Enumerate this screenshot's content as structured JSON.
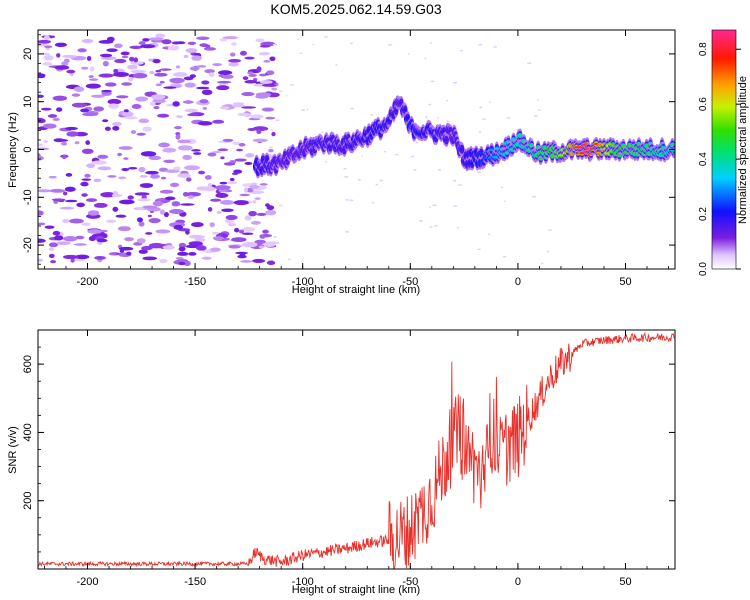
{
  "title": "KOM5.2025.062.14.59.G03",
  "spectrogram": {
    "type": "heatmap",
    "xlabel": "Height of straight line (km)",
    "ylabel": "Frequency (Hz)",
    "xlim": [
      -223,
      73
    ],
    "ylim": [
      -25,
      25
    ],
    "xticks": [
      "-200",
      "-150",
      "-100",
      "-50",
      "0",
      "50"
    ],
    "yticks": [
      "-20",
      "-10",
      "0",
      "10",
      "20"
    ],
    "colorbar": {
      "label": "Normalized spectral amplitude",
      "ticks": [
        "0.0",
        "0.2",
        "0.4",
        "0.6",
        "0.8"
      ],
      "range": [
        0,
        0.87
      ]
    }
  },
  "chart_data": [
    {
      "type": "heatmap",
      "title": "KOM5.2025.062.14.59.G03",
      "xlabel": "Height of straight line (km)",
      "ylabel": "Frequency (Hz)",
      "xlim": [
        -223,
        73
      ],
      "ylim": [
        -25,
        25
      ],
      "colorbar_range": [
        0,
        0.87
      ],
      "ridge": [
        {
          "x": -122,
          "y": -3.5,
          "amp": 0.2
        },
        {
          "x": -110,
          "y": -3.0,
          "amp": 0.15
        },
        {
          "x": -100,
          "y": 0.0,
          "amp": 0.15
        },
        {
          "x": -90,
          "y": 1.5,
          "amp": 0.18
        },
        {
          "x": -80,
          "y": 1.0,
          "amp": 0.17
        },
        {
          "x": -70,
          "y": 3.0,
          "amp": 0.2
        },
        {
          "x": -60,
          "y": 5.5,
          "amp": 0.2
        },
        {
          "x": -55,
          "y": 10.0,
          "amp": 0.15
        },
        {
          "x": -50,
          "y": 4.5,
          "amp": 0.22
        },
        {
          "x": -40,
          "y": 3.5,
          "amp": 0.2
        },
        {
          "x": -30,
          "y": 3.0,
          "amp": 0.15
        },
        {
          "x": -25,
          "y": -2.0,
          "amp": 0.18
        },
        {
          "x": -15,
          "y": -1.5,
          "amp": 0.25
        },
        {
          "x": -8,
          "y": -0.5,
          "amp": 0.35
        },
        {
          "x": 0,
          "y": 2.0,
          "amp": 0.4
        },
        {
          "x": 10,
          "y": -1.0,
          "amp": 0.45
        },
        {
          "x": 20,
          "y": -0.3,
          "amp": 0.55
        },
        {
          "x": 32,
          "y": 0.0,
          "amp": 0.87
        },
        {
          "x": 45,
          "y": 0.0,
          "amp": 0.5
        },
        {
          "x": 60,
          "y": 0.0,
          "amp": 0.45
        },
        {
          "x": 73,
          "y": 0.0,
          "amp": 0.4
        }
      ]
    },
    {
      "type": "line",
      "xlabel": "Height of straight line (km)",
      "ylabel": "SNR (v/v)",
      "xlim": [
        -223,
        73
      ],
      "ylim": [
        0,
        700
      ],
      "xticks": [
        "-200",
        "-150",
        "-100",
        "-50",
        "0",
        "50"
      ],
      "yticks": [
        "200",
        "400",
        "600"
      ],
      "series": [
        {
          "color": "#e8302a",
          "x": [
            -223,
            -200,
            -150,
            -125,
            -122,
            -118,
            -110,
            -100,
            -90,
            -80,
            -70,
            -60,
            -52,
            -45,
            -38,
            -33,
            -28,
            -24,
            -20,
            -16,
            -12,
            -8,
            -4,
            0,
            5,
            10,
            15,
            20,
            25,
            30,
            40,
            50,
            60,
            73
          ],
          "y": [
            15,
            15,
            15,
            15,
            50,
            30,
            20,
            40,
            50,
            60,
            75,
            85,
            100,
            160,
            240,
            330,
            400,
            350,
            300,
            260,
            400,
            330,
            370,
            380,
            440,
            500,
            560,
            600,
            630,
            660,
            670,
            675,
            678,
            680
          ]
        }
      ]
    }
  ]
}
